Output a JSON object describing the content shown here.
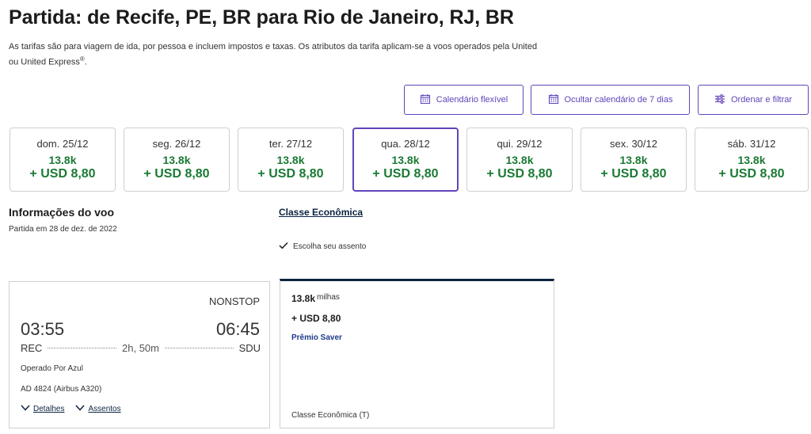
{
  "header": {
    "title": "Partida: de Recife, PE, BR para Rio de Janeiro, RJ, BR",
    "disclaimer": "As tarifas são para viagem de ida, por pessoa e incluem impostos e taxas. Os atributos da tarifa aplicam-se a voos operados pela United ou United Express",
    "disclaimer_mark": "®",
    "disclaimer_end": "."
  },
  "actions": {
    "flex_calendar": "Calendário flexível",
    "hide_calendar": "Ocultar calendário de 7 dias",
    "sort_filter": "Ordenar e filtrar"
  },
  "dates": [
    {
      "day": "dom. 25/12",
      "miles": "13.8k",
      "price": "+ USD 8,80"
    },
    {
      "day": "seg. 26/12",
      "miles": "13.8k",
      "price": "+ USD 8,80"
    },
    {
      "day": "ter. 27/12",
      "miles": "13.8k",
      "price": "+ USD 8,80"
    },
    {
      "day": "qua. 28/12",
      "miles": "13.8k",
      "price": "+ USD 8,80"
    },
    {
      "day": "qui. 29/12",
      "miles": "13.8k",
      "price": "+ USD 8,80"
    },
    {
      "day": "sex. 30/12",
      "miles": "13.8k",
      "price": "+ USD 8,80"
    },
    {
      "day": "sáb. 31/12",
      "miles": "13.8k",
      "price": "+ USD 8,80"
    }
  ],
  "selected_date_index": 3,
  "flight_info": {
    "title": "Informações do voo",
    "subtitle": "Partida em 28 de dez. de 2022"
  },
  "cabin": {
    "link": "Classe Econômica",
    "seat_choice": "Escolha seu assento"
  },
  "flight": {
    "stops": "NONSTOP",
    "depart_time": "03:55",
    "arrive_time": "06:45",
    "origin": "REC",
    "destination": "SDU",
    "duration": "2h, 50m",
    "operated_by": "Operado Por Azul",
    "flight_number": "AD 4824 (Airbus A320)",
    "details_link": "Detalhes",
    "seats_link": "Assentos"
  },
  "fare": {
    "miles": "13.8k",
    "miles_unit": "milhas",
    "usd": "+ USD 8,80",
    "type": "Prêmio Saver",
    "class": "Classe Econômica (T)"
  },
  "colors": {
    "accent": "#6244bb",
    "price_green": "#1a7a34",
    "navy": "#0c2340",
    "saver_blue": "#1e3a8a"
  }
}
